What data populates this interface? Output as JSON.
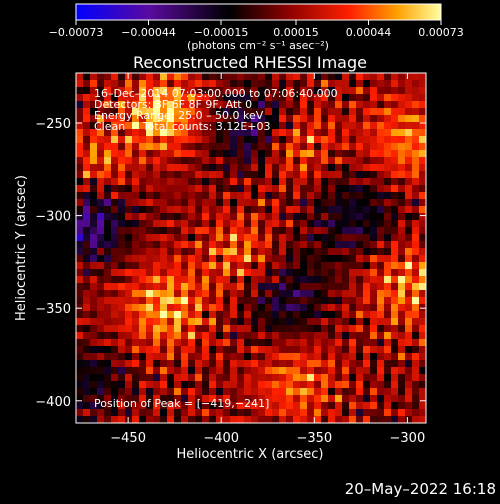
{
  "chart_data": {
    "type": "heatmap",
    "title": "Reconstructed RHESSI Image",
    "xlabel": "Heliocentric X (arcsec)",
    "ylabel": "Heliocentric Y (arcsec)",
    "xlim": [
      -478,
      -290
    ],
    "ylim": [
      -412,
      -223
    ],
    "xticks": [
      -450,
      -400,
      -350,
      -300
    ],
    "yticks": [
      -250,
      -300,
      -350,
      -400
    ],
    "xtick_labels": [
      "−450",
      "−400",
      "−350",
      "−300"
    ],
    "ytick_labels": [
      "−250",
      "−300",
      "−350",
      "−400"
    ],
    "colorbar": {
      "range": [
        -0.00073,
        0.00073
      ],
      "ticks": [
        -0.00073,
        -0.00044,
        -0.00015,
        0.00015,
        0.00044,
        0.00073
      ],
      "tick_labels": [
        "−0.00073",
        "−0.00044",
        "−0.00015",
        "0.00015",
        "0.00044",
        "0.00073"
      ],
      "unit_label": "(photons cm⁻² s⁻¹ asec⁻²)",
      "colors": [
        "#0000ff",
        "#5a0aa0",
        "#000000",
        "#8b0000",
        "#ff2000",
        "#ffa000",
        "#ffffa0"
      ]
    },
    "annotations": [
      "16–Dec–2014 07:03:00.000 to 07:06:40.000",
      "Detectors: 3F 6F 8F 9F, Att 0",
      "Energy Range: 25.0 – 50.0 keV",
      "Clean     Total counts: 3.12E+03"
    ],
    "peak_label": "Position of Peak = [−419,−241]",
    "peak": [
      -419,
      -241
    ],
    "grid": false
  },
  "footer": {
    "date": "20–May–2022 16:18"
  }
}
